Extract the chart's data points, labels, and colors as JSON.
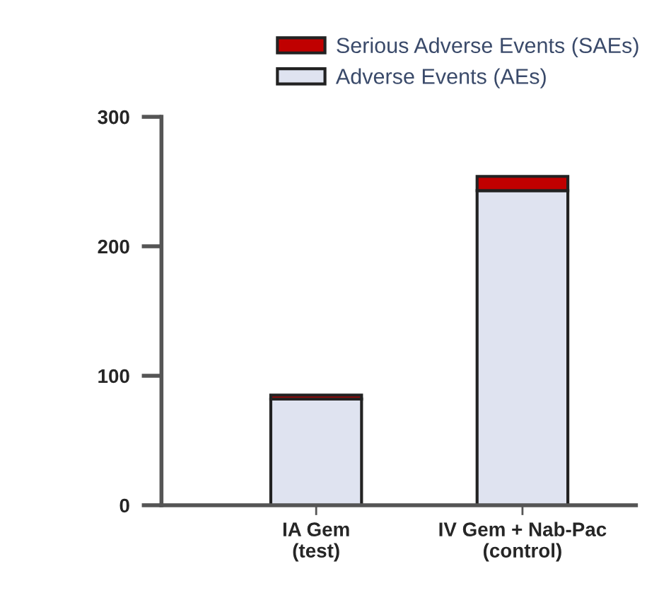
{
  "chart_data": {
    "type": "bar",
    "stacked": true,
    "categories": [
      "IA Gem\n(test)",
      "IV Gem + Nab-Pac\n(control)"
    ],
    "series": [
      {
        "name": "Adverse Events (AEs)",
        "color": "#dfe3f0",
        "values": [
          82,
          243
        ]
      },
      {
        "name": "Serious Adverse Events (SAEs)",
        "color": "#c00000",
        "values": [
          3,
          11
        ]
      }
    ],
    "ylim": [
      0,
      300
    ],
    "yticks": [
      0,
      100,
      200,
      300
    ],
    "grid": false,
    "legend": "top right"
  }
}
